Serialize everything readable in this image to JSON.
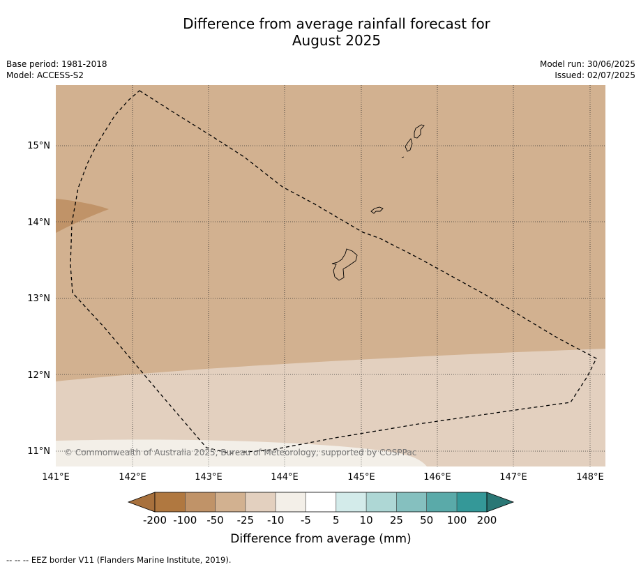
{
  "title_line1": "Difference from average rainfall forecast for",
  "title_line2": "August 2025",
  "meta_left": {
    "base_period": "Base period: 1981-2018",
    "model": "Model: ACCESS-S2"
  },
  "meta_right": {
    "model_run": "Model run: 30/06/2025",
    "issued": "Issued: 02/07/2025"
  },
  "map": {
    "lon_labels": [
      "141°E",
      "142°E",
      "143°E",
      "144°E",
      "145°E",
      "146°E",
      "147°E",
      "148°E"
    ],
    "lat_labels": [
      "15°N",
      "14°N",
      "13°N",
      "12°N",
      "11°N"
    ],
    "copyright": "© Commonwealth of Australia 2025, Bureau of Meteorology, supported by COSPPac",
    "colors": {
      "lt_-50_-25": "#d2b190",
      "lt_-100_-50": "#c09368",
      "lt_-25_-10": "#e3d0bf",
      "lt_-10_-5": "#f3efe8"
    }
  },
  "colorbar": {
    "ticks": [
      "-200",
      "-100",
      "-50",
      "-25",
      "-10",
      "-5",
      "5",
      "10",
      "25",
      "50",
      "100",
      "200"
    ],
    "colors": [
      "#a8713d",
      "#b07840",
      "#c09368",
      "#d2b190",
      "#e3d0bf",
      "#f3efe8",
      "#ffffff",
      "#d3ebea",
      "#aed7d5",
      "#85c0bf",
      "#5aaaa9",
      "#349898",
      "#2a7775"
    ],
    "label": "Difference from average (mm)"
  },
  "footer": "--  --  -- EEZ border V11 (Flanders Marine Institute, 2019)."
}
